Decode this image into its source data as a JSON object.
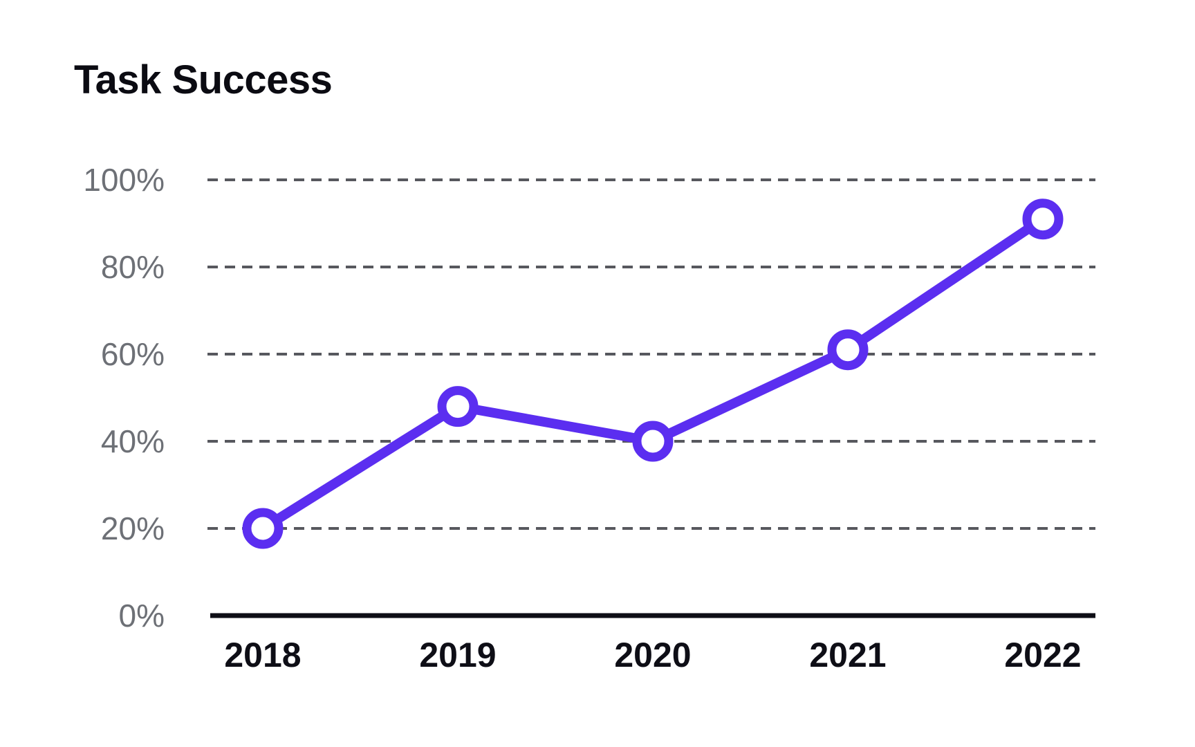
{
  "page": {
    "background_color": "#FFFFFF"
  },
  "chart_data": {
    "type": "line",
    "title": "Task Success",
    "categories": [
      "2018",
      "2019",
      "2020",
      "2021",
      "2022"
    ],
    "values": [
      20,
      48,
      40,
      61,
      91
    ],
    "series": [
      {
        "name": "Task Success",
        "values": [
          20,
          48,
          40,
          61,
          91
        ]
      }
    ],
    "unit": "%",
    "xlabel": "",
    "ylabel": "",
    "ylim": [
      0,
      100
    ],
    "yticks": [
      0,
      20,
      40,
      60,
      80,
      100
    ],
    "ytick_labels": [
      "0%",
      "20%",
      "40%",
      "60%",
      "80%",
      "100%"
    ],
    "grid": "horizontal-dashed",
    "legend": "none",
    "marker": "open-circle",
    "colors": {
      "line": "#5B2EF0",
      "marker_fill": "#FFFFFF",
      "grid": "#57585E",
      "axis": "#0E0E16",
      "ytick_label": "#6D7076",
      "xtick_label": "#0E0E16",
      "title": "#0B0B12"
    }
  }
}
